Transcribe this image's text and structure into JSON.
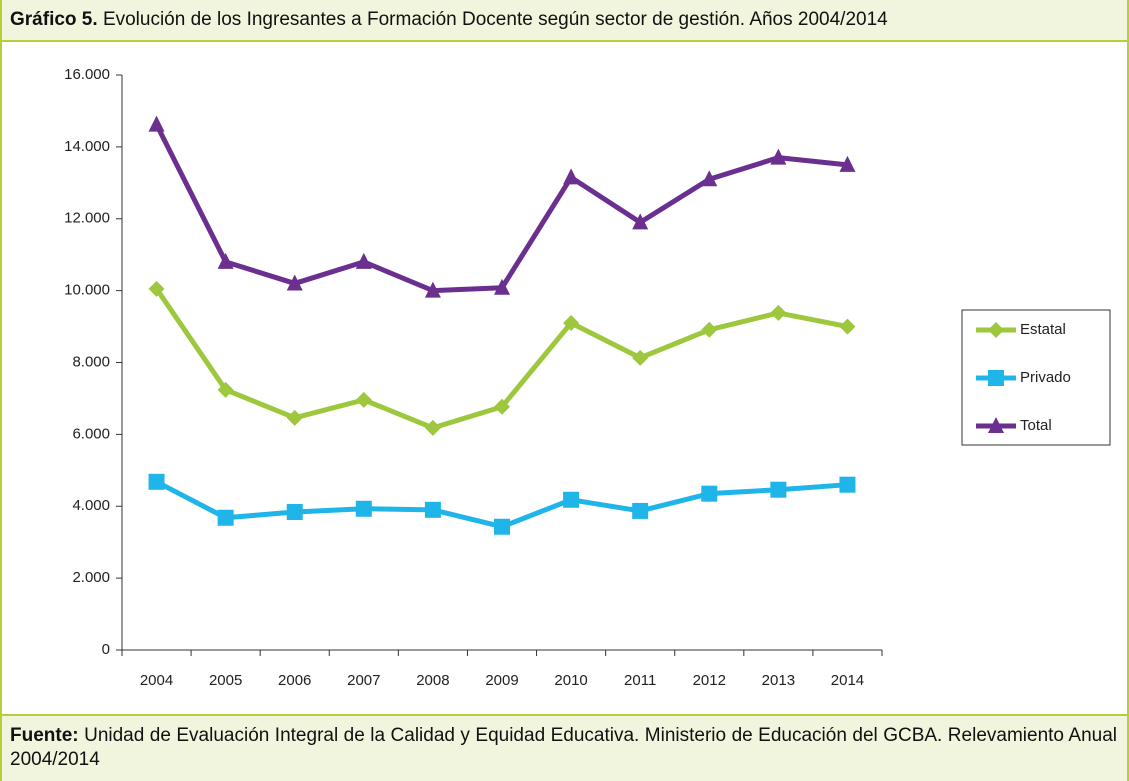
{
  "header": {
    "label": "Gráfico 5.",
    "title": "Evolución de los Ingresantes a Formación Docente según sector de gestión. Años  2004/2014"
  },
  "chart_data": {
    "type": "line",
    "categories": [
      "2004",
      "2005",
      "2006",
      "2007",
      "2008",
      "2009",
      "2010",
      "2011",
      "2012",
      "2013",
      "2014"
    ],
    "series": [
      {
        "name": "Estatal",
        "color": "#9dc73d",
        "marker": "diamond",
        "values": [
          10050,
          7240,
          6460,
          6960,
          6180,
          6770,
          9100,
          8130,
          8910,
          9380,
          9000
        ]
      },
      {
        "name": "Privado",
        "color": "#1fb5e8",
        "marker": "square",
        "values": [
          4680,
          3680,
          3840,
          3930,
          3900,
          3430,
          4180,
          3870,
          4350,
          4460,
          4600
        ]
      },
      {
        "name": "Total",
        "color": "#6a2f8f",
        "marker": "triangle",
        "values": [
          14620,
          10800,
          10200,
          10800,
          10000,
          10080,
          13150,
          11900,
          13100,
          13700,
          13500
        ]
      }
    ],
    "ylim": [
      0,
      16000
    ],
    "yticks": [
      0,
      {
        "value": 2000,
        "label": "2.000"
      },
      {
        "value": 4000,
        "label": "4.000"
      },
      {
        "value": 6000,
        "label": "6.000"
      },
      {
        "value": 8000,
        "label": "8.000"
      },
      {
        "value": 10000,
        "label": "10.000"
      },
      {
        "value": 12000,
        "label": "12.000"
      },
      {
        "value": 14000,
        "label": "14.000"
      },
      {
        "value": 16000,
        "label": "16.000"
      }
    ],
    "legend": "right"
  },
  "footer": {
    "label": "Fuente:",
    "text": "Unidad de Evaluación Integral de la Calidad y Equidad Educativa. Ministerio de Educación del GCBA. Relevamiento Anual 2004/2014"
  }
}
